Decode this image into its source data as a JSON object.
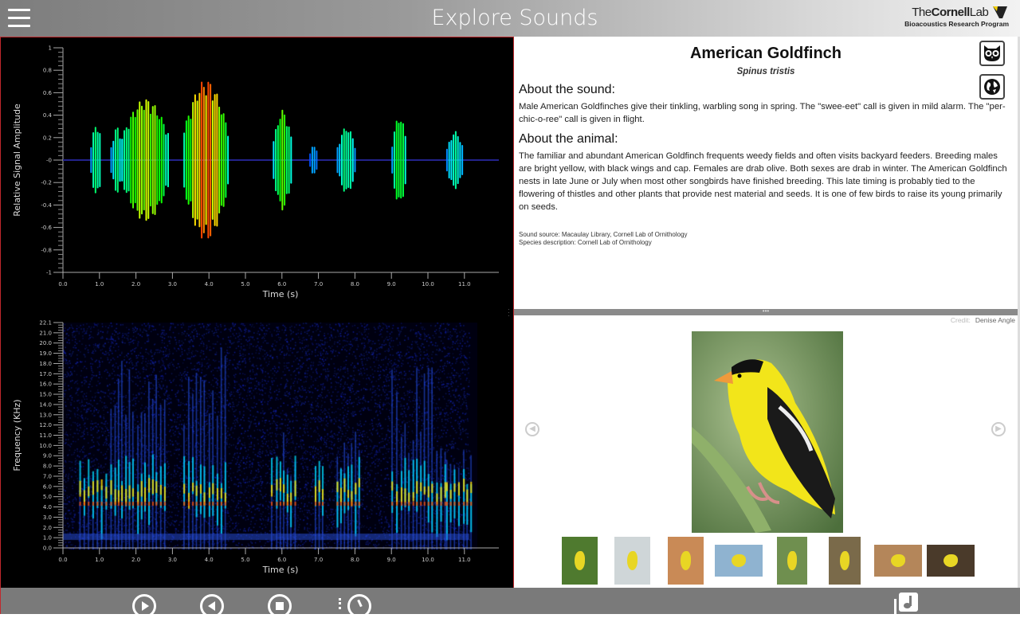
{
  "header": {
    "title": "Explore Sounds",
    "logo_line1_prefix": "The",
    "logo_line1_bold": "Cornell",
    "logo_line1_suffix": "Lab",
    "logo_line2": "Bioacoustics Research Program"
  },
  "species": {
    "common_name": "American Goldfinch",
    "scientific_name": "Spinus tristis"
  },
  "about_sound": {
    "heading": "About the sound:",
    "text": "Male American Goldfinches give their tinkling, warbling song in spring. The \"swee-eet\" call is given in mild alarm. The \"per-chic-o-ree\" call is given in flight."
  },
  "about_animal": {
    "heading": "About the animal:",
    "text": "The familiar and abundant American Goldfinch frequents weedy fields and often visits backyard feeders. Breeding males are bright yellow, with black wings and cap. Females are drab olive. Both sexes are drab in winter. The American Goldfinch nests in late June or July when most other songbirds have finished breeding. This late timing is probably tied to the flowering of thistles and other plants that provide nest material and seeds. It is one of few birds to raise its young primarily on seeds."
  },
  "sources": {
    "sound": "Sound source: Macaulay Library, Cornell Lab of Ornithology",
    "species": "Species description: Cornell Lab of Ornithology"
  },
  "photo": {
    "credit_label": "Credit:",
    "credit_name": "Denise Angle",
    "thumbnail_count": 8
  },
  "icons": {
    "menu": "hamburger-icon",
    "owl": "owl-icon",
    "globe": "globe-icon",
    "play": "play-icon",
    "rewind": "rewind-icon",
    "stop": "stop-icon",
    "history": "history-icon",
    "music": "music-note-icon"
  },
  "colors": {
    "accent_border": "#c0282d",
    "bar": "#7a7a7a"
  },
  "waveform": {
    "ylabel": "Relative Signal Amplitude",
    "xlabel": "Time (s)",
    "yticks": [
      "1",
      "0.8",
      "0.6",
      "0.4",
      "0.2",
      "-0",
      "-0.2",
      "-0.4",
      "-0.6",
      "-0.8",
      "-1"
    ],
    "xticks": [
      "0.0",
      "1.0",
      "2.0",
      "3.0",
      "4.0",
      "5.0",
      "6.0",
      "7.0",
      "8.0",
      "9.0",
      "10.0",
      "11.0"
    ]
  },
  "spectrogram": {
    "ylabel": "Frequency (KHz)",
    "xlabel": "Time (s)",
    "yticks": [
      "22.1",
      "21.0",
      "20.0",
      "19.0",
      "18.0",
      "17.0",
      "16.0",
      "15.0",
      "14.0",
      "13.0",
      "12.0",
      "11.0",
      "10.0",
      "9.0",
      "8.0",
      "7.0",
      "6.0",
      "5.0",
      "4.0",
      "3.0",
      "2.0",
      "1.0",
      "0.0"
    ],
    "xticks": [
      "0.0",
      "1.0",
      "2.0",
      "3.0",
      "4.0",
      "5.0",
      "6.0",
      "7.0",
      "8.0",
      "9.0",
      "10.0",
      "11.0"
    ]
  }
}
